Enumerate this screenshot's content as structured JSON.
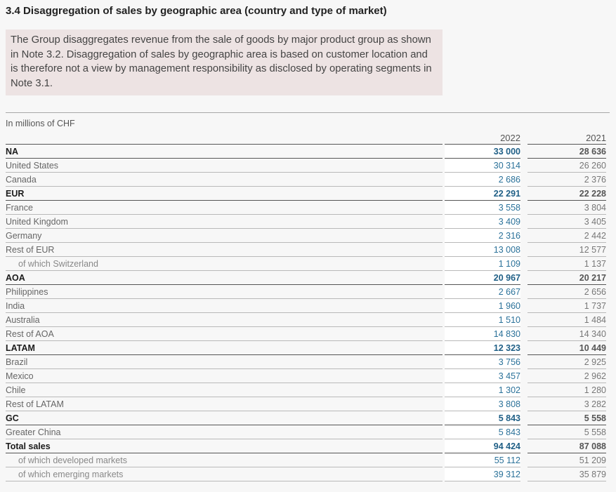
{
  "title": "3.4 Disaggregation of sales by geographic area (country and type of market)",
  "note": "The Group disaggregates revenue from the sale of goods by major product group as shown in Note 3.2. Disaggregation of sales by geographic area is based on customer location and is therefore not a view by management responsibility as disclosed by operating segments in Note 3.1.",
  "units": "In millions of CHF",
  "columns": {
    "y2022": "2022",
    "y2021": "2021"
  },
  "colors": {
    "accent": "#2a7199",
    "accent_bold": "#1f5f86",
    "note_background": "#ede3e3"
  },
  "rows": [
    {
      "label": "NA",
      "v2022": "33 000",
      "v2021": "28 636",
      "style": "bold"
    },
    {
      "label": "United States",
      "v2022": "30 314",
      "v2021": "26 260",
      "style": "normal"
    },
    {
      "label": "Canada",
      "v2022": "2 686",
      "v2021": "2 376",
      "style": "normal"
    },
    {
      "label": "EUR",
      "v2022": "22 291",
      "v2021": "22 228",
      "style": "bold"
    },
    {
      "label": "France",
      "v2022": "3 558",
      "v2021": "3 804",
      "style": "normal"
    },
    {
      "label": "United Kingdom",
      "v2022": "3 409",
      "v2021": "3 405",
      "style": "normal"
    },
    {
      "label": "Germany",
      "v2022": "2 316",
      "v2021": "2 442",
      "style": "normal"
    },
    {
      "label": "Rest of EUR",
      "v2022": "13 008",
      "v2021": "12 577",
      "style": "normal"
    },
    {
      "label": "of which Switzerland",
      "v2022": "1 109",
      "v2021": "1 137",
      "style": "sub"
    },
    {
      "label": "AOA",
      "v2022": "20 967",
      "v2021": "20 217",
      "style": "bold"
    },
    {
      "label": "Philippines",
      "v2022": "2 667",
      "v2021": "2 656",
      "style": "normal"
    },
    {
      "label": "India",
      "v2022": "1 960",
      "v2021": "1 737",
      "style": "normal"
    },
    {
      "label": "Australia",
      "v2022": "1 510",
      "v2021": "1 484",
      "style": "normal"
    },
    {
      "label": "Rest of AOA",
      "v2022": "14 830",
      "v2021": "14 340",
      "style": "normal"
    },
    {
      "label": "LATAM",
      "v2022": "12 323",
      "v2021": "10 449",
      "style": "bold"
    },
    {
      "label": "Brazil",
      "v2022": "3 756",
      "v2021": "2 925",
      "style": "normal"
    },
    {
      "label": "Mexico",
      "v2022": "3 457",
      "v2021": "2 962",
      "style": "normal"
    },
    {
      "label": "Chile",
      "v2022": "1 302",
      "v2021": "1 280",
      "style": "normal"
    },
    {
      "label": "Rest of LATAM",
      "v2022": "3 808",
      "v2021": "3 282",
      "style": "normal"
    },
    {
      "label": "GC",
      "v2022": "5 843",
      "v2021": "5 558",
      "style": "bold"
    },
    {
      "label": "Greater China",
      "v2022": "5 843",
      "v2021": "5 558",
      "style": "normal"
    },
    {
      "label": "Total sales",
      "v2022": "94 424",
      "v2021": "87 088",
      "style": "bold"
    },
    {
      "label": "of which developed markets",
      "v2022": "55 112",
      "v2021": "51 209",
      "style": "sub"
    },
    {
      "label": "of which emerging markets",
      "v2022": "39 312",
      "v2021": "35 879",
      "style": "sub"
    }
  ]
}
